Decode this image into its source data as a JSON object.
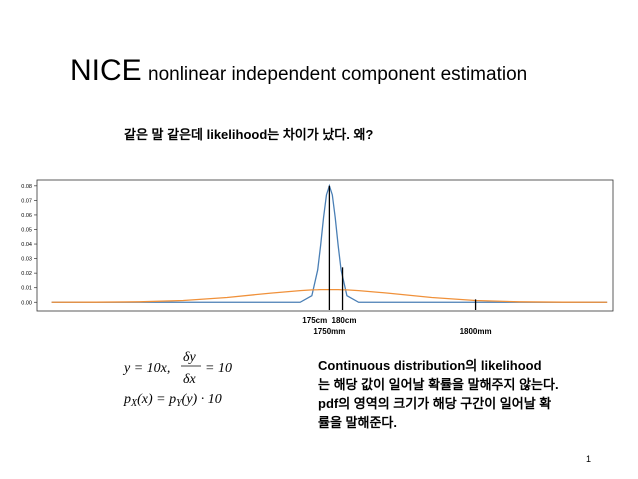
{
  "slide": {
    "title_main": "NICE",
    "title_sub": "nonlinear independent component estimation",
    "question": "같은 말 같은데 likelihood는 차이가 났다. 왜?",
    "formula": {
      "line1_left": "y = 10x,",
      "num": "δy",
      "den": "δx",
      "line1_right": "= 10",
      "p1": "p",
      "s1": "X",
      "mid": "(x) = ",
      "p2": "p",
      "s2": "Y",
      "end": "(y) · 10"
    },
    "explanation": [
      "Continuous distribution의 likelihood",
      "는 해당 값이 일어날 확률을 말해주지 않는다.",
      "pdf의 영역의 크기가 해당 구간이 일어날 확",
      "률을 말해준다."
    ],
    "page_number": "1"
  },
  "chart_data": {
    "type": "line",
    "x": [
      1655,
      1670,
      1685,
      1700,
      1715,
      1730,
      1740,
      1744,
      1746,
      1747,
      1748,
      1749,
      1750,
      1751,
      1752,
      1753,
      1754,
      1756,
      1760,
      1770,
      1785,
      1800,
      1815,
      1830,
      1845
    ],
    "series": [
      {
        "color": "#4a7fb5",
        "values": [
          0,
          0,
          0,
          0,
          0,
          0,
          0,
          0.0045,
          0.0222,
          0.039,
          0.0581,
          0.0738,
          0.08,
          0.0738,
          0.0581,
          0.039,
          0.0222,
          0.0045,
          0,
          0,
          0,
          0,
          0,
          0,
          0
        ]
      },
      {
        "color": "#f0913a",
        "values": [
          0,
          5e-05,
          0.0003,
          0.0012,
          0.0033,
          0.0063,
          0.008,
          0.0085,
          0.0086,
          0.0087,
          0.0087,
          0.0087,
          0.0087,
          0.0087,
          0.0087,
          0.0087,
          0.0086,
          0.0085,
          0.008,
          0.0063,
          0.0033,
          0.0012,
          0.0003,
          5e-05,
          0
        ]
      }
    ],
    "markers": [
      {
        "x": 1750,
        "y": 0.08
      },
      {
        "x": 1754.5,
        "y": 0.024
      },
      {
        "x": 1800,
        "y": 0.002
      }
    ],
    "annotations": [
      {
        "x": 1745,
        "text": "175cm"
      },
      {
        "x": 1755,
        "text": "180cm"
      },
      {
        "x": 1750,
        "text": "1750mm"
      },
      {
        "x": 1800,
        "text": "1800mm"
      }
    ],
    "xlim": [
      1650,
      1847
    ],
    "ylim": [
      -0.006,
      0.084
    ],
    "yticks": [
      {
        "value": 0,
        "label": "0.00"
      },
      {
        "value": 0.01,
        "label": "0.01"
      },
      {
        "value": 0.02,
        "label": "0.02"
      },
      {
        "value": 0.03,
        "label": "0.03"
      },
      {
        "value": 0.04,
        "label": "0.04"
      },
      {
        "value": 0.05,
        "label": "0.05"
      },
      {
        "value": 0.06,
        "label": "0.06"
      },
      {
        "value": 0.07,
        "label": "0.07"
      },
      {
        "value": 0.08,
        "label": "0.08"
      }
    ]
  }
}
